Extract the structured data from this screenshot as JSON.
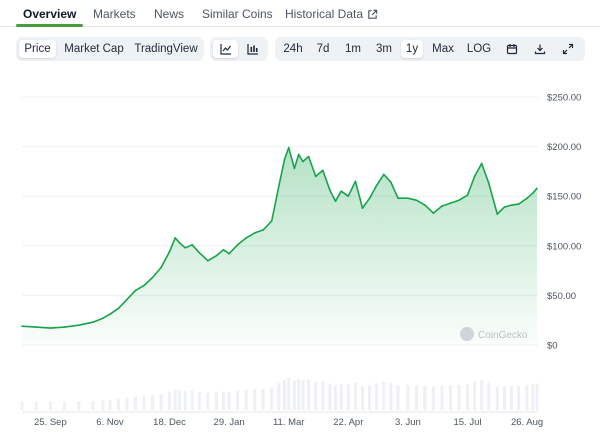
{
  "tabs": [
    {
      "label": "Overview",
      "active": true
    },
    {
      "label": "Markets"
    },
    {
      "label": "News"
    },
    {
      "label": "Similar Coins"
    },
    {
      "label": "Historical Data",
      "icon": "external-link-icon"
    }
  ],
  "toolbar": {
    "type_options": [
      "Price",
      "Market Cap",
      "TradingView"
    ],
    "type_selected": "Price",
    "chart_style": {
      "selected": "line-chart-icon",
      "options": [
        "line-chart-icon",
        "candlestick-icon"
      ]
    },
    "ranges": [
      "24h",
      "7d",
      "1m",
      "3m",
      "1y",
      "Max",
      "LOG"
    ],
    "range_selected": "1y",
    "actions": [
      "calendar-icon",
      "download-icon",
      "fullscreen-icon"
    ]
  },
  "watermark": "CoinGecko",
  "colors": {
    "line": "#16a34a",
    "accent": "#4b9c3c",
    "grid": "#eef0f3"
  },
  "chart_data": {
    "type": "area",
    "title": "",
    "xlabel": "",
    "ylabel": "",
    "y_ticks": [
      "$0",
      "$50.00",
      "$100.00",
      "$150.00",
      "$200.00",
      "$250.00"
    ],
    "ylim": [
      0,
      250
    ],
    "x_ticks": [
      {
        "label": "25. Sep",
        "x": "2023-09-25"
      },
      {
        "label": "6. Nov",
        "x": "2023-11-06"
      },
      {
        "label": "18. Dec",
        "x": "2023-12-18"
      },
      {
        "label": "29. Jan",
        "x": "2024-01-29"
      },
      {
        "label": "11. Mar",
        "x": "2024-03-11"
      },
      {
        "label": "22. Apr",
        "x": "2024-04-22"
      },
      {
        "label": "3. Jun",
        "x": "2024-06-03"
      },
      {
        "label": "15. Jul",
        "x": "2024-07-15"
      },
      {
        "label": "26. Aug",
        "x": "2024-08-26"
      }
    ],
    "grid": true,
    "series": [
      {
        "x": [
          "2023-09-05",
          "2023-09-15",
          "2023-09-25",
          "2023-10-05",
          "2023-10-15",
          "2023-10-25",
          "2023-11-01",
          "2023-11-06",
          "2023-11-12",
          "2023-11-18",
          "2023-11-24",
          "2023-11-30",
          "2023-12-06",
          "2023-12-12",
          "2023-12-18",
          "2023-12-22",
          "2023-12-25",
          "2023-12-29",
          "2024-01-03",
          "2024-01-08",
          "2024-01-14",
          "2024-01-20",
          "2024-01-25",
          "2024-01-29",
          "2024-02-04",
          "2024-02-10",
          "2024-02-16",
          "2024-02-22",
          "2024-02-28",
          "2024-03-04",
          "2024-03-08",
          "2024-03-11",
          "2024-03-15",
          "2024-03-18",
          "2024-03-21",
          "2024-03-25",
          "2024-03-30",
          "2024-04-04",
          "2024-04-09",
          "2024-04-13",
          "2024-04-17",
          "2024-04-22",
          "2024-04-27",
          "2024-05-02",
          "2024-05-07",
          "2024-05-12",
          "2024-05-17",
          "2024-05-22",
          "2024-05-27",
          "2024-06-03",
          "2024-06-09",
          "2024-06-15",
          "2024-06-21",
          "2024-06-27",
          "2024-07-03",
          "2024-07-09",
          "2024-07-15",
          "2024-07-20",
          "2024-07-25",
          "2024-07-30",
          "2024-08-05",
          "2024-08-10",
          "2024-08-15",
          "2024-08-20",
          "2024-08-26",
          "2024-08-30",
          "2024-09-02"
        ],
        "y": [
          19,
          18,
          17,
          18,
          20,
          23,
          27,
          31,
          37,
          46,
          55,
          60,
          68,
          78,
          94,
          108,
          103,
          98,
          101,
          93,
          85,
          90,
          96,
          92,
          101,
          108,
          113,
          116,
          125,
          160,
          187,
          199,
          178,
          192,
          185,
          190,
          170,
          176,
          156,
          145,
          155,
          150,
          165,
          138,
          148,
          161,
          172,
          164,
          148,
          148,
          146,
          141,
          133,
          140,
          143,
          146,
          151,
          170,
          183,
          163,
          132,
          139,
          141,
          142,
          148,
          153,
          158
        ]
      }
    ]
  }
}
